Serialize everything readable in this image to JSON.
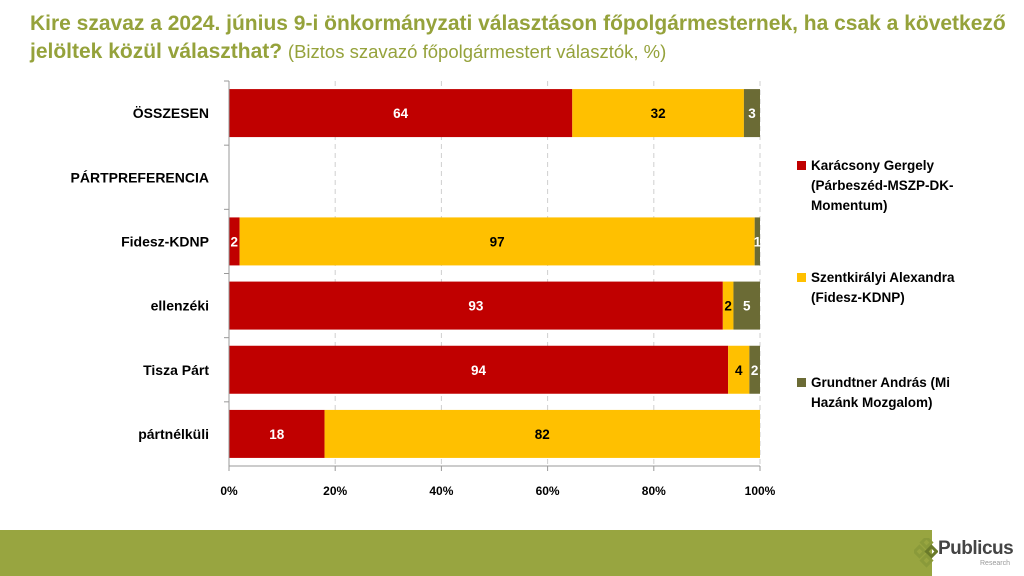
{
  "title": {
    "main": "Kire szavaz a 2024. június 9-i önkormányzati választáson főpolgármesternek, ha csak a következő jelöltek közül választhat?",
    "subtitle": "(Biztos szavazó főpolgármestert választók, %)"
  },
  "chart_data": {
    "type": "bar",
    "orientation": "horizontal",
    "stacked": "percent",
    "categories": [
      "ÖSSZESEN",
      "PÁRTPREFERENCIA",
      "Fidesz-KDNP",
      "ellenzéki",
      "Tisza Párt",
      "pártnélküli"
    ],
    "series": [
      {
        "name": "Karácsony Gergely (Párbeszéd-MSZP-DK-Momentum)",
        "color": "#c00000",
        "label_color": "#ffffff",
        "values": [
          64,
          null,
          2,
          93,
          94,
          18
        ]
      },
      {
        "name": "Szentkirályi Alexandra (Fidesz-KDNP)",
        "color": "#ffc000",
        "label_color": "#000000",
        "values": [
          32,
          null,
          97,
          2,
          4,
          82
        ]
      },
      {
        "name": "Grundtner András (Mi Hazánk Mozgalom)",
        "color": "#6b6b35",
        "label_color": "#ffffff",
        "values": [
          3,
          null,
          1,
          5,
          2,
          null
        ]
      }
    ],
    "xlim": [
      0,
      100
    ],
    "xticks": [
      "0%",
      "20%",
      "40%",
      "60%",
      "80%",
      "100%"
    ],
    "grid": true,
    "legend": "right",
    "xlabel": "",
    "ylabel": ""
  },
  "footer": {
    "logo_text": "Publicus",
    "logo_sub": "Research",
    "bar_color": "#98a540"
  }
}
